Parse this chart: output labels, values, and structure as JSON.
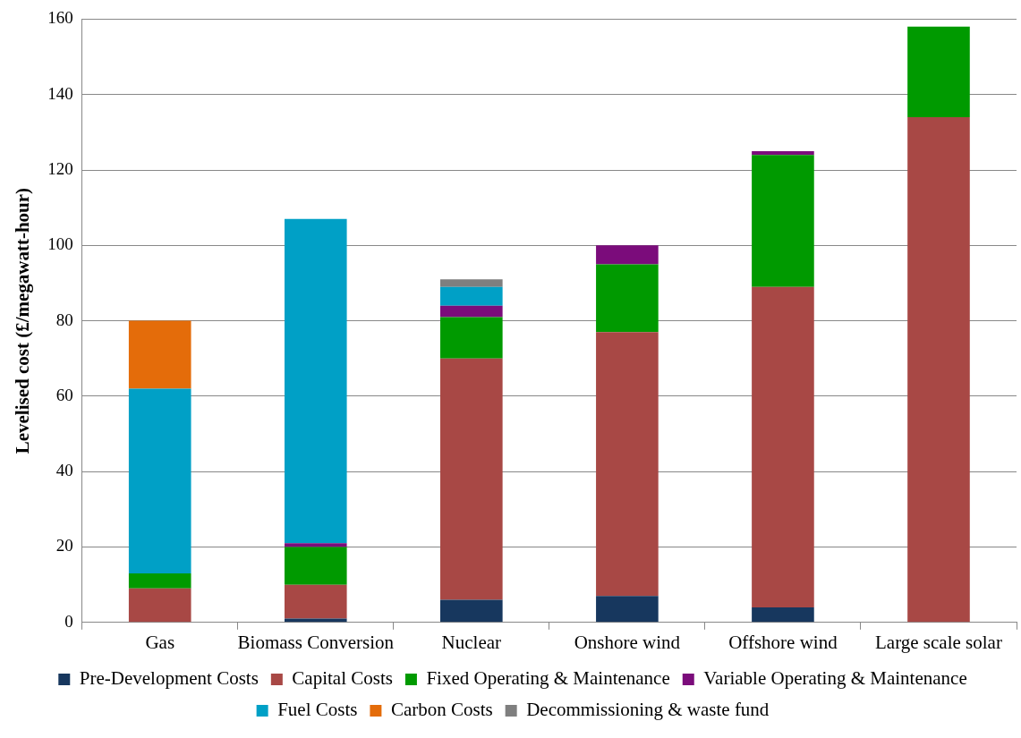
{
  "chart_data": {
    "type": "bar",
    "stacked": true,
    "categories": [
      "Gas",
      "Biomass Conversion",
      "Nuclear",
      "Onshore wind",
      "Offshore wind",
      "Large scale solar"
    ],
    "ylabel": "Levelised cost (£/megawatt-hour)",
    "ylim": [
      0,
      160
    ],
    "yticks": [
      0,
      20,
      40,
      60,
      80,
      100,
      120,
      140,
      160
    ],
    "grid": "y",
    "legend": "bottom",
    "series": [
      {
        "name": "Pre-Development Costs",
        "color": "#17375e",
        "values": [
          null,
          1,
          6,
          7,
          4,
          null
        ]
      },
      {
        "name": "Capital Costs",
        "color": "#a84845",
        "values": [
          9,
          9,
          64,
          70,
          85,
          134
        ]
      },
      {
        "name": "Fixed Operating & Maintenance",
        "color": "#009a00",
        "values": [
          4,
          10,
          11,
          18,
          35,
          24
        ]
      },
      {
        "name": "Variable Operating & Maintenance",
        "color": "#7b0c7b",
        "values": [
          null,
          1,
          3,
          5,
          1,
          null
        ]
      },
      {
        "name": "Fuel Costs",
        "color": "#00a0c6",
        "values": [
          49,
          86,
          5,
          null,
          null,
          null
        ]
      },
      {
        "name": "Carbon Costs",
        "color": "#e46c0a",
        "values": [
          18,
          null,
          null,
          null,
          null,
          null
        ]
      },
      {
        "name": "Decommissioning & waste fund",
        "color": "#7f7f7f",
        "values": [
          null,
          null,
          2,
          null,
          null,
          null
        ]
      }
    ]
  }
}
